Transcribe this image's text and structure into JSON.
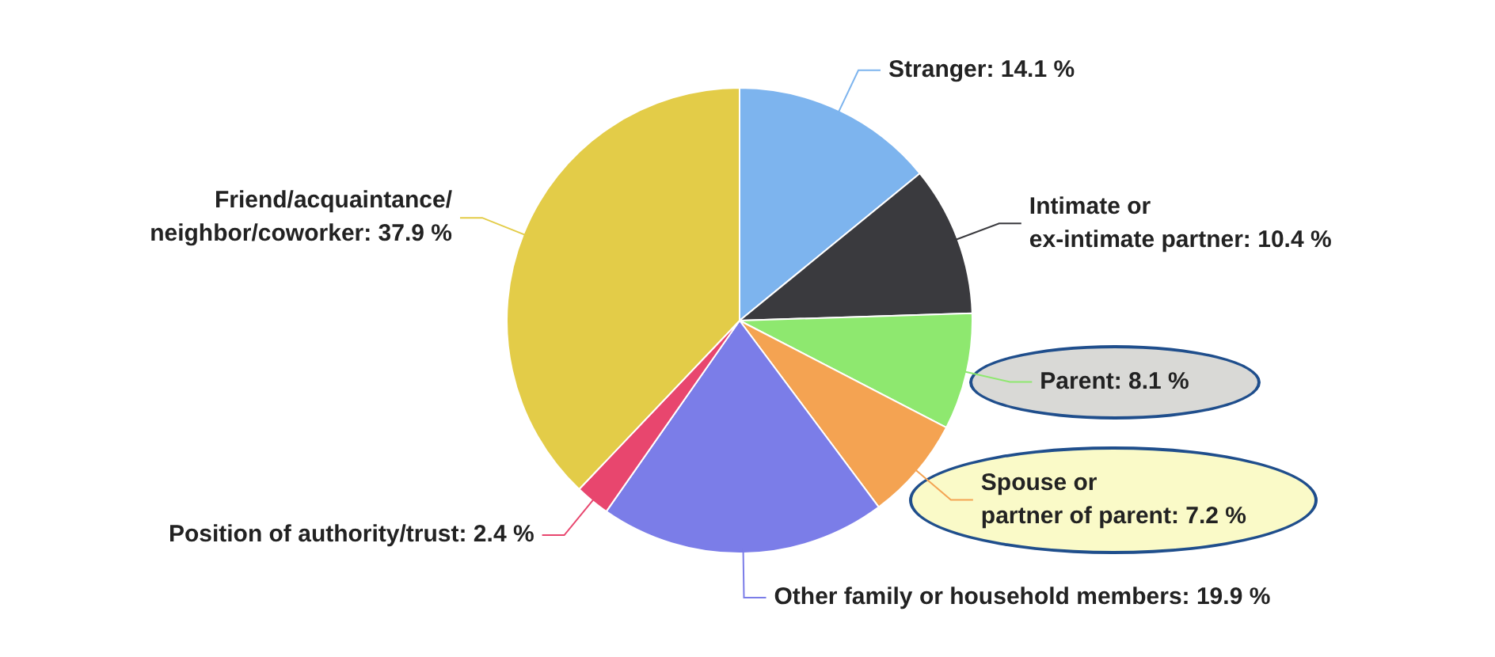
{
  "chart_data": {
    "type": "pie",
    "categories": [
      "Stranger",
      "Intimate or\nex-intimate partner",
      "Parent",
      "Spouse or\npartner of parent",
      "Other family or household members",
      "Position of authority/trust",
      "Friend/acquaintance/\nneighbor/coworker"
    ],
    "values": [
      14.1,
      10.4,
      8.1,
      7.2,
      19.9,
      2.4,
      37.9
    ],
    "value_labels": [
      "14.1 %",
      "10.4 %",
      "8.1 %",
      "7.2 %",
      "19.9 %",
      "2.4 %",
      "37.9 %"
    ],
    "colors": [
      "#7db4ee",
      "#3a3a3e",
      "#8ee86f",
      "#f4a352",
      "#7b7de8",
      "#e8466e",
      "#e3cc48"
    ],
    "legend": false
  }
}
